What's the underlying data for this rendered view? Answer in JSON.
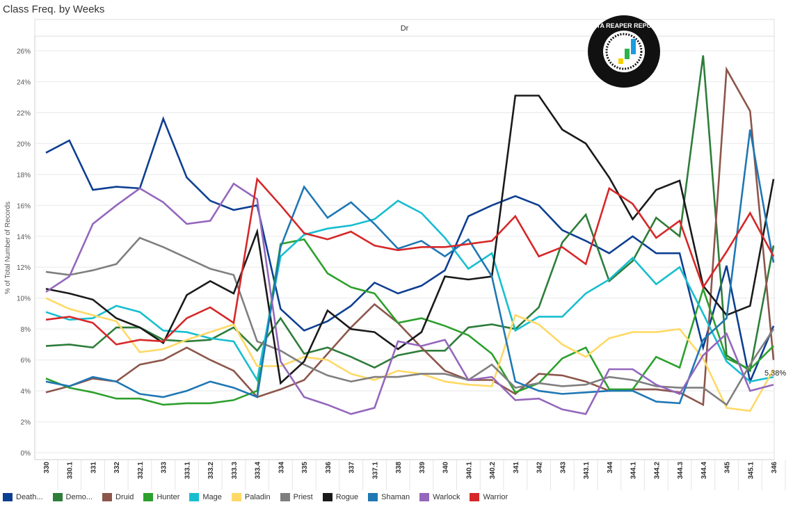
{
  "title": "Class Freq. by Weeks",
  "chart_data": {
    "type": "line",
    "title": "Class Freq. by Weeks",
    "panel_header": "Dr",
    "xlabel": "",
    "ylabel": "% of Total Number of Records",
    "ylim": [
      0,
      27
    ],
    "yticks": [
      "0%",
      "2%",
      "4%",
      "6%",
      "8%",
      "10%",
      "12%",
      "14%",
      "16%",
      "18%",
      "20%",
      "22%",
      "24%",
      "26%"
    ],
    "grid": true,
    "legend_position": "bottom",
    "annotation": "5.38%",
    "logo_text": "DATA REAPER REPORT - Vicious Syndicate Presents",
    "categories": [
      "330",
      "330.1",
      "331",
      "332",
      "332.1",
      "333",
      "333.1",
      "333.2",
      "333.3",
      "333.4",
      "334",
      "335",
      "336",
      "337",
      "337.1",
      "338",
      "339",
      "340",
      "340.1",
      "340.2",
      "341",
      "342",
      "343",
      "343.1",
      "344",
      "344.1",
      "344.2",
      "344.3",
      "344.4",
      "345",
      "345.1",
      "346"
    ],
    "series": [
      {
        "name": "Death...",
        "color": "#0d3f91",
        "values": [
          19.4,
          20.2,
          17.0,
          17.2,
          17.1,
          21.6,
          17.8,
          16.3,
          15.7,
          16.0,
          9.3,
          7.9,
          8.5,
          9.5,
          11.0,
          10.3,
          10.8,
          11.8,
          15.3,
          16.0,
          16.6,
          16.0,
          14.4,
          13.7,
          12.9,
          14.0,
          12.9,
          12.9,
          6.8,
          12.1,
          4.6,
          8.2
        ]
      },
      {
        "name": "Demo...",
        "color": "#2e7d3a",
        "values": [
          6.9,
          7.0,
          6.8,
          8.1,
          8.1,
          7.3,
          7.2,
          7.3,
          8.1,
          6.6,
          8.7,
          6.4,
          6.8,
          6.2,
          5.5,
          6.3,
          6.6,
          6.6,
          8.1,
          8.3,
          8.0,
          9.4,
          13.6,
          15.4,
          11.1,
          12.4,
          15.2,
          14.0,
          25.7,
          6.3,
          5.3,
          13.4
        ]
      },
      {
        "name": "Druid",
        "color": "#8c564b",
        "values": [
          3.9,
          4.3,
          4.8,
          4.6,
          5.7,
          6.0,
          6.8,
          6.0,
          5.3,
          3.6,
          4.1,
          4.7,
          6.4,
          8.1,
          9.6,
          8.4,
          6.8,
          5.3,
          4.7,
          4.7,
          3.8,
          5.1,
          5.0,
          4.6,
          4.0,
          4.1,
          4.1,
          3.9,
          3.1,
          24.8,
          22.1,
          6.0
        ]
      },
      {
        "name": "Hunter",
        "color": "#2ca02c",
        "values": [
          4.8,
          4.2,
          3.9,
          3.5,
          3.5,
          3.1,
          3.2,
          3.2,
          3.4,
          4.0,
          13.5,
          13.8,
          11.6,
          10.7,
          10.3,
          8.4,
          8.7,
          8.2,
          7.6,
          6.4,
          3.9,
          4.5,
          6.1,
          6.8,
          4.1,
          4.1,
          6.2,
          5.5,
          10.6,
          6.1,
          5.4,
          6.9
        ]
      },
      {
        "name": "Mage",
        "color": "#17becf",
        "values": [
          9.1,
          8.6,
          8.7,
          9.5,
          9.1,
          7.9,
          7.8,
          7.4,
          7.2,
          4.7,
          12.7,
          14.1,
          14.5,
          14.7,
          15.1,
          16.3,
          15.5,
          13.9,
          11.9,
          12.9,
          7.9,
          8.8,
          8.8,
          10.3,
          11.2,
          12.6,
          10.9,
          12.0,
          9.0,
          5.9,
          4.6,
          4.9
        ]
      },
      {
        "name": "Paladin",
        "color": "#ffd966",
        "values": [
          10.0,
          9.3,
          8.9,
          8.5,
          6.5,
          6.7,
          7.3,
          7.8,
          8.3,
          5.6,
          5.6,
          6.2,
          6.0,
          5.1,
          4.7,
          5.3,
          5.1,
          4.6,
          4.4,
          4.3,
          8.9,
          8.3,
          7.0,
          6.2,
          7.4,
          7.8,
          7.8,
          8.0,
          6.1,
          2.9,
          2.7,
          5.38
        ]
      },
      {
        "name": "Priest",
        "color": "#7f7f7f",
        "values": [
          11.7,
          11.5,
          11.8,
          12.2,
          13.9,
          13.3,
          12.6,
          11.9,
          11.5,
          7.2,
          6.6,
          5.7,
          5.0,
          4.6,
          4.9,
          4.9,
          5.1,
          5.1,
          4.7,
          5.7,
          4.2,
          4.5,
          4.3,
          4.4,
          4.9,
          4.7,
          4.3,
          4.2,
          4.2,
          3.1,
          5.7,
          8.0
        ]
      },
      {
        "name": "Rogue",
        "color": "#1a1a1a",
        "values": [
          10.6,
          10.3,
          9.9,
          8.7,
          8.1,
          7.1,
          10.2,
          11.1,
          10.3,
          14.3,
          4.5,
          5.9,
          9.2,
          8.0,
          7.8,
          6.7,
          7.8,
          11.4,
          11.2,
          11.4,
          23.1,
          23.1,
          20.9,
          20.0,
          17.8,
          15.1,
          17.0,
          17.6,
          10.8,
          8.9,
          9.5,
          17.7
        ]
      },
      {
        "name": "Shaman",
        "color": "#1f77b4",
        "values": [
          4.6,
          4.3,
          4.9,
          4.6,
          3.8,
          3.6,
          4.0,
          4.6,
          4.2,
          3.6,
          13.3,
          17.2,
          15.2,
          16.2,
          14.8,
          13.2,
          13.7,
          12.7,
          13.8,
          11.4,
          4.6,
          4.0,
          3.8,
          3.9,
          4.0,
          4.0,
          3.3,
          3.2,
          7.3,
          8.7,
          20.9,
          12.3
        ]
      },
      {
        "name": "Warlock",
        "color": "#9467bd",
        "values": [
          10.4,
          11.4,
          14.8,
          16.0,
          17.1,
          16.2,
          14.8,
          15.0,
          17.4,
          16.4,
          5.9,
          3.6,
          3.1,
          2.5,
          2.9,
          7.2,
          6.9,
          7.3,
          4.7,
          4.9,
          3.4,
          3.5,
          2.8,
          2.5,
          5.4,
          5.4,
          4.4,
          3.8,
          6.3,
          7.7,
          4.0,
          4.4
        ]
      },
      {
        "name": "Warrior",
        "color": "#d62728",
        "values": [
          8.6,
          8.8,
          8.4,
          7.0,
          7.3,
          7.2,
          8.7,
          9.4,
          8.4,
          17.7,
          16.0,
          14.2,
          13.8,
          14.3,
          13.4,
          13.1,
          13.3,
          13.3,
          13.5,
          13.7,
          15.3,
          12.7,
          13.3,
          12.2,
          17.1,
          16.1,
          13.9,
          15.0,
          10.7,
          13.0,
          15.5,
          12.7
        ]
      }
    ]
  }
}
